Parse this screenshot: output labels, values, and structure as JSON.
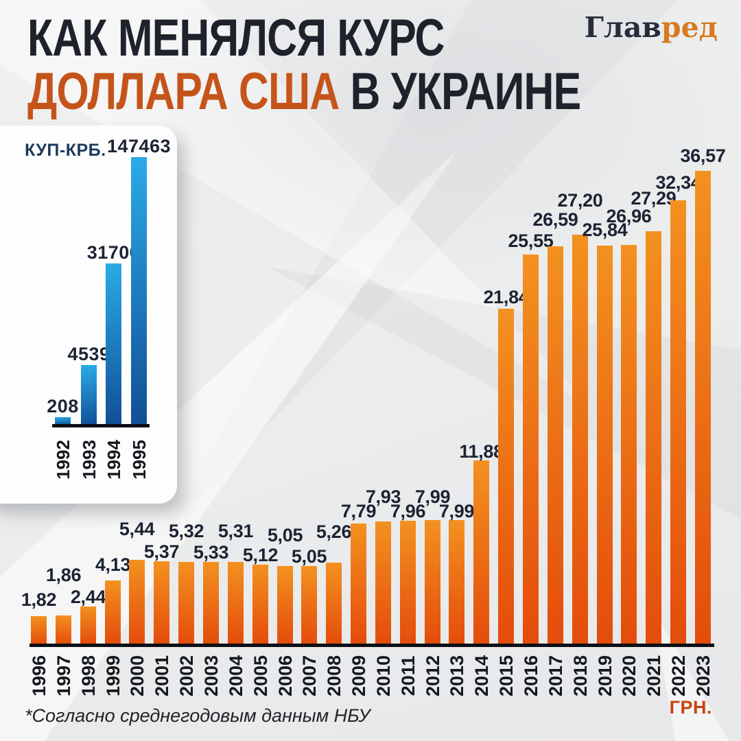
{
  "header": {
    "title_line1": "КАК МЕНЯЛСЯ КУРС",
    "title_accent": "ДОЛЛАРА США",
    "title_rest": " В УКРАИНЕ",
    "logo_part1": "Глав",
    "logo_part2": "ред"
  },
  "footer": {
    "footnote": "*Согласно среднегодовым данным НБУ",
    "unit_label": "ГРН."
  },
  "colors": {
    "title_dark": "#1e222b",
    "title_accent": "#c5541a",
    "logo_dark": "#262c39",
    "logo_accent": "#d87a1f",
    "value_label": "#1c2433",
    "axis": "#0c0f14",
    "unit_label": "#c8440e",
    "inset_title": "#1d3a5c"
  },
  "chart_data": [
    {
      "type": "bar",
      "title": "КУП-КРБ.",
      "unit": "КУП-КРБ.",
      "categories": [
        "1992",
        "1993",
        "1994",
        "1995"
      ],
      "values": [
        208,
        4539,
        31700,
        147463
      ],
      "value_labels": [
        "208",
        "4539",
        "31700",
        "147463"
      ],
      "bar_color_top": "#2aabe6",
      "bar_color_bottom": "#114e96",
      "grid": false,
      "legend": "none",
      "bar_label_position": "above",
      "category_label_rotation": -90
    },
    {
      "type": "bar",
      "title": "Курс доллара США в Украине",
      "unit": "ГРН.",
      "categories": [
        "1996",
        "1997",
        "1998",
        "1999",
        "2000",
        "2001",
        "2002",
        "2003",
        "2004",
        "2005",
        "2006",
        "2007",
        "2008",
        "2009",
        "2010",
        "2011",
        "2012",
        "2013",
        "2014",
        "2015",
        "2016",
        "2017",
        "2018",
        "2019",
        "2020",
        "2021",
        "2022",
        "2023"
      ],
      "values": [
        1.82,
        1.86,
        2.44,
        4.13,
        5.44,
        5.37,
        5.32,
        5.33,
        5.31,
        5.12,
        5.05,
        5.05,
        5.26,
        7.79,
        7.93,
        7.96,
        7.99,
        7.99,
        11.88,
        21.84,
        25.55,
        26.59,
        27.2,
        25.84,
        26.96,
        27.29,
        32.34,
        36.57
      ],
      "value_labels": [
        "1,82",
        "1,86",
        "2,44",
        "4,13",
        "5,44",
        "5,37",
        "5,32",
        "5,33",
        "5,31",
        "5,12",
        "5,05",
        "5,05",
        "5,26",
        "7,79",
        "7,93",
        "7,96",
        "7,99",
        "7,99",
        "11,88",
        "21,84",
        "25,55",
        "26,59",
        "27,20",
        "25,84",
        "26,96",
        "27,29",
        "32,34",
        "36,57"
      ],
      "bar_color_top": "#f39120",
      "bar_color_bottom": "#e44c0b",
      "grid": false,
      "legend": "none",
      "bar_label_position": "above",
      "category_label_rotation": -90,
      "source_note": "*Согласно среднегодовым данным НБУ"
    }
  ]
}
